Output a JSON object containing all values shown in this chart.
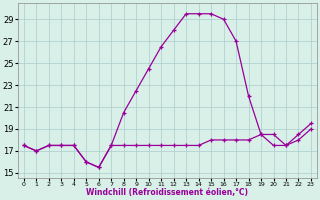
{
  "hours": [
    0,
    1,
    2,
    3,
    4,
    5,
    6,
    7,
    8,
    9,
    10,
    11,
    12,
    13,
    14,
    15,
    16,
    17,
    18,
    19,
    20,
    21,
    22,
    23
  ],
  "temp": [
    17.5,
    17.0,
    17.5,
    17.5,
    17.5,
    16.0,
    15.5,
    17.5,
    20.5,
    22.5,
    24.5,
    26.5,
    28.0,
    29.5,
    29.5,
    29.5,
    29.0,
    27.0,
    22.0,
    18.5,
    18.5,
    17.5,
    18.5,
    19.5
  ],
  "windchill": [
    17.5,
    17.0,
    17.5,
    17.5,
    17.5,
    16.0,
    15.5,
    17.5,
    17.5,
    17.5,
    17.5,
    17.5,
    17.5,
    17.5,
    17.5,
    18.0,
    18.0,
    18.0,
    18.0,
    18.5,
    17.5,
    17.5,
    18.0,
    19.0
  ],
  "line_color": "#990099",
  "bg_color": "#d8f0e8",
  "grid_color": "#aacccc",
  "xlabel": "Windchill (Refroidissement éolien,°C)",
  "yticks": [
    15,
    17,
    19,
    21,
    23,
    25,
    27,
    29
  ],
  "ylim": [
    14.5,
    30.5
  ],
  "xlim": [
    -0.5,
    23.5
  ],
  "figsize": [
    3.2,
    2.0
  ],
  "dpi": 100
}
